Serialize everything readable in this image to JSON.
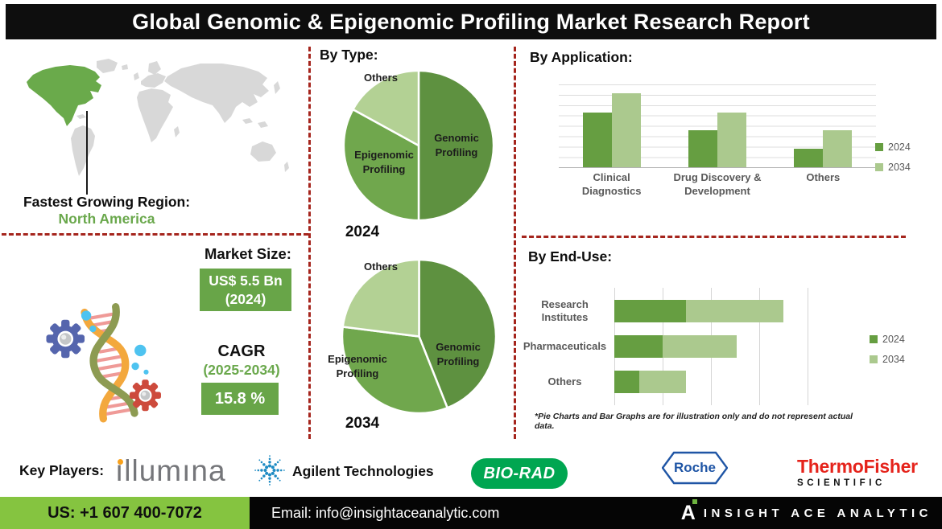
{
  "header": {
    "title": "Global Genomic & Epigenomic Profiling Market Research Report"
  },
  "region": {
    "label": "Fastest Growing Region:",
    "value": "North America"
  },
  "market": {
    "size_label": "Market Size:",
    "size_value": "US$ 5.5 Bn",
    "size_year": "(2024)",
    "cagr_label": "CAGR",
    "cagr_period": "(2025-2034)",
    "cagr_value": "15.8 %"
  },
  "sections": {
    "by_type": "By Type:",
    "by_application": "By Application:",
    "by_end_use": "By End-Use:"
  },
  "footnote": "*Pie Charts and Bar Graphs are for illustration only and do not represent actual data.",
  "key_players": {
    "label": "Key Players:",
    "illumina_wordmark": "ıllumına",
    "agilent": "Agilent Technologies",
    "biorad": "BIO-RAD",
    "roche": "Roche",
    "thermo_line1": "ThermoFisher",
    "thermo_line2": "SCIENTIFIC"
  },
  "footer": {
    "phone": "US: +1 607 400-7072",
    "email": "Email: info@insightaceanalytic.com",
    "brand_initial": "A",
    "brand": "INSIGHT ACE ANALYTIC"
  },
  "colors": {
    "pie_genomic": "#5e9140",
    "pie_epigenomic": "#70a74d",
    "pie_others": "#b3d194",
    "series_2024": "#669e41",
    "series_2034": "#abc98e",
    "box_green": "#68a548",
    "accent_green_text": "#6aa84c",
    "footer_green": "#85c440",
    "dashed_red": "#a5251d",
    "map_gray": "#d8d8d8",
    "map_highlight": "#6aaa4b"
  },
  "chart_data": [
    {
      "id": "by_type_2024",
      "type": "pie",
      "title": "By Type: 2024",
      "year_label": "2024",
      "labels": [
        "Genomic Profiling",
        "Epigenomic Profiling",
        "Others"
      ],
      "values": [
        50,
        33,
        17
      ],
      "colors": [
        "#5e9140",
        "#70a74d",
        "#b3d194"
      ],
      "note": "illustrative only"
    },
    {
      "id": "by_type_2034",
      "type": "pie",
      "title": "By Type: 2034",
      "year_label": "2034",
      "labels": [
        "Genomic Profiling",
        "Epigenomic Profiling",
        "Others"
      ],
      "values": [
        44,
        33,
        23
      ],
      "colors": [
        "#5e9140",
        "#70a74d",
        "#b3d194"
      ],
      "note": "illustrative only"
    },
    {
      "id": "by_application",
      "type": "bar",
      "title": "By Application:",
      "categories": [
        "Clinical Diagnostics",
        "Drug Discovery & Development",
        "Others"
      ],
      "series": [
        {
          "name": "2024",
          "color": "#669e41",
          "values": [
            66,
            45,
            22
          ]
        },
        {
          "name": "2034",
          "color": "#abc98e",
          "values": [
            89,
            66,
            45
          ]
        }
      ],
      "ylim": [
        0,
        100
      ],
      "grid": true,
      "legend_position": "right",
      "note": "no numeric axis labels shown; illustrative only"
    },
    {
      "id": "by_end_use",
      "type": "bar-horizontal-stacked",
      "title": "By End-Use:",
      "categories": [
        "Research Institutes",
        "Pharmaceuticals",
        "Others"
      ],
      "series": [
        {
          "name": "2024",
          "color": "#669e41",
          "values": [
            37,
            25,
            13
          ]
        },
        {
          "name": "2034",
          "color": "#abc98e",
          "values": [
            50,
            38,
            24
          ]
        }
      ],
      "xlim": [
        0,
        100
      ],
      "grid": true,
      "legend_position": "right",
      "note": "no numeric axis labels shown; illustrative only"
    }
  ]
}
